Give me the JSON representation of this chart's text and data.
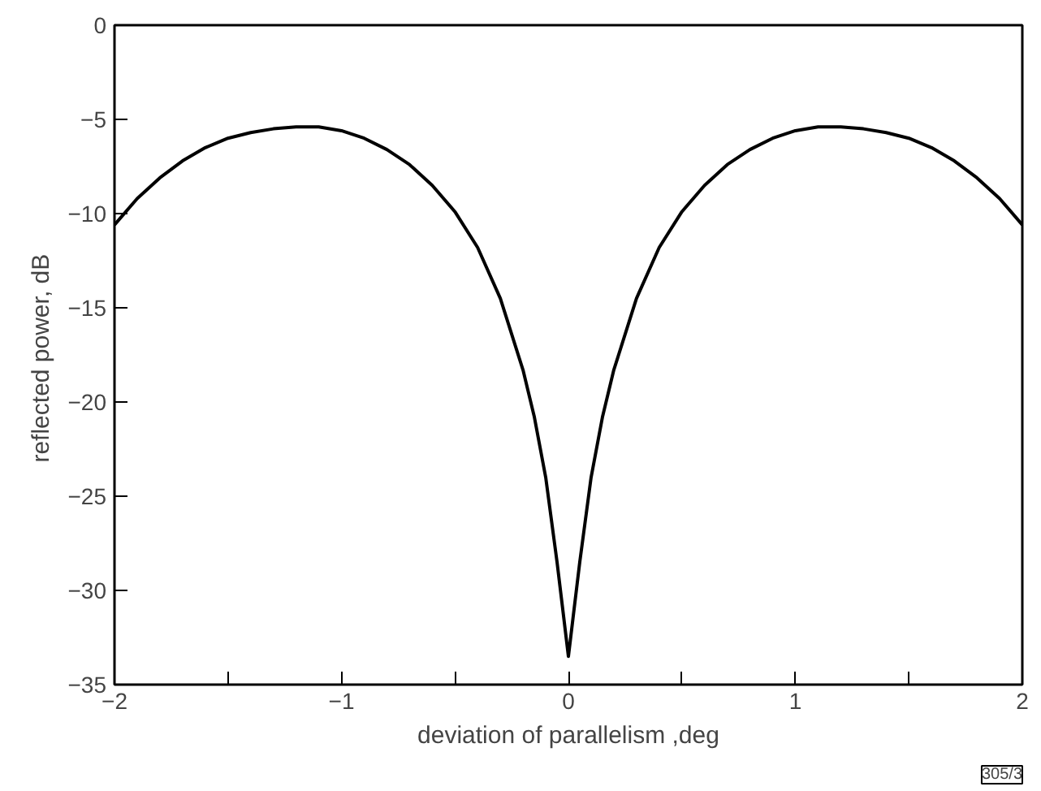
{
  "chart_data": {
    "type": "line",
    "xlabel": "deviation of parallelism ,deg",
    "ylabel": "reflected  power, dB",
    "x": [
      -2,
      -1.9,
      -1.8,
      -1.7,
      -1.6,
      -1.5,
      -1.4,
      -1.3,
      -1.2,
      -1.1,
      -1.0,
      -0.9,
      -0.8,
      -0.7,
      -0.6,
      -0.5,
      -0.4,
      -0.3,
      -0.2,
      -0.15,
      -0.1,
      -0.05,
      -0.02,
      0,
      0.02,
      0.05,
      0.1,
      0.15,
      0.2,
      0.3,
      0.4,
      0.5,
      0.6,
      0.7,
      0.8,
      0.9,
      1.0,
      1.1,
      1.2,
      1.3,
      1.4,
      1.5,
      1.6,
      1.7,
      1.8,
      1.9,
      2
    ],
    "series": [
      {
        "color": "#000000",
        "values": [
          -10.6,
          -9.2,
          -8.1,
          -7.2,
          -6.5,
          -6.0,
          -5.7,
          -5.5,
          -5.4,
          -5.4,
          -5.6,
          -6.0,
          -6.6,
          -7.4,
          -8.5,
          -9.9,
          -11.8,
          -14.5,
          -18.3,
          -20.8,
          -24.0,
          -28.5,
          -31.5,
          -33.5,
          -31.5,
          -28.5,
          -24.0,
          -20.8,
          -18.3,
          -14.5,
          -11.8,
          -9.9,
          -8.5,
          -7.4,
          -6.6,
          -6.0,
          -5.6,
          -5.4,
          -5.4,
          -5.5,
          -5.7,
          -6.0,
          -6.5,
          -7.2,
          -8.1,
          -9.2,
          -10.6
        ]
      }
    ],
    "xlim": [
      -2,
      2
    ],
    "ylim": [
      -35,
      0
    ],
    "xticks": [
      -2,
      {
        "value": -1.5,
        "label": null
      },
      -1,
      {
        "value": -0.5,
        "label": null
      },
      0,
      {
        "value": 0.5,
        "label": null
      },
      1,
      {
        "value": 1.5,
        "label": null
      },
      2
    ],
    "yticks": [
      -35,
      -30,
      -25,
      -20,
      -15,
      -10,
      -5,
      0
    ],
    "grid": false,
    "marker": "none",
    "line_style": "solid",
    "annotations": [
      "305/3"
    ]
  }
}
